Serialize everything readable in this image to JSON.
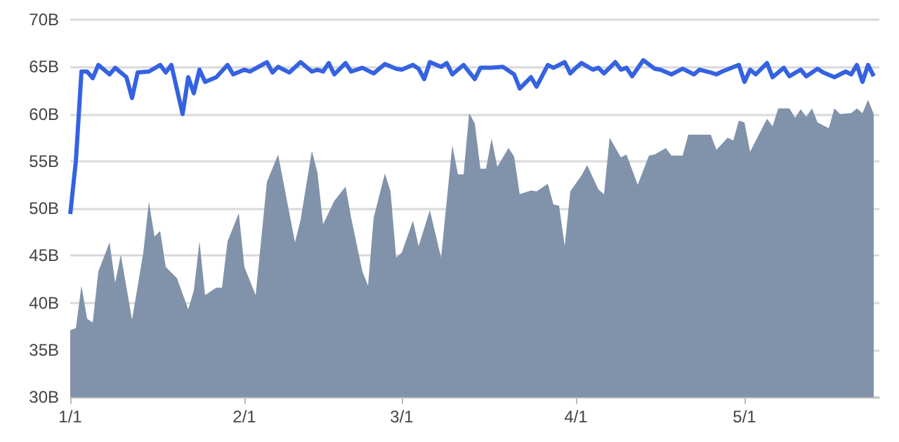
{
  "chart_data": {
    "type": "area",
    "xlim": [
      "--01-01",
      "--05-25"
    ],
    "xticks": [
      {
        "value": "--01-01",
        "label": "1/1"
      },
      {
        "value": "--02-01",
        "label": "2/1"
      },
      {
        "value": "--03-01",
        "label": "3/1"
      },
      {
        "value": "--04-01",
        "label": "4/1"
      },
      {
        "value": "--05-01",
        "label": "5/1"
      }
    ],
    "ylim": [
      30,
      70
    ],
    "yticks": [
      {
        "value": 30,
        "label": "30B"
      },
      {
        "value": 35,
        "label": "35B"
      },
      {
        "value": 40,
        "label": "40B"
      },
      {
        "value": 45,
        "label": "45B"
      },
      {
        "value": 50,
        "label": "50B"
      },
      {
        "value": 55,
        "label": "55B"
      },
      {
        "value": 60,
        "label": "60B"
      },
      {
        "value": 65,
        "label": "65B"
      },
      {
        "value": 70,
        "label": "70B"
      }
    ],
    "grid": "y",
    "series": [
      {
        "color": "#8193aa",
        "x": [
          "--01-01",
          "--01-02",
          "--01-03",
          "--01-04",
          "--01-05",
          "--01-06",
          "--01-08",
          "--01-09",
          "--01-10",
          "--01-12",
          "--01-14",
          "--01-15",
          "--01-16",
          "--01-17",
          "--01-18",
          "--01-20",
          "--01-22",
          "--01-23",
          "--01-24",
          "--01-25",
          "--01-27",
          "--01-28",
          "--01-29",
          "--01-30",
          "--01-31",
          "--02-01",
          "--02-03",
          "--02-05",
          "--02-07",
          "--02-10",
          "--02-11",
          "--02-13",
          "--02-14",
          "--02-15",
          "--02-17",
          "--02-19",
          "--02-20",
          "--02-22",
          "--02-23",
          "--02-24",
          "--02-26",
          "--02-27",
          "--02-28",
          "--03-01",
          "--03-03",
          "--03-04",
          "--03-06",
          "--03-08",
          "--03-10",
          "--03-11",
          "--03-12",
          "--03-13",
          "--03-14",
          "--03-15",
          "--03-16",
          "--03-17",
          "--03-18",
          "--03-20",
          "--03-21",
          "--03-22",
          "--03-24",
          "--03-25",
          "--03-27",
          "--03-28",
          "--03-29",
          "--03-30",
          "--03-31",
          "--04-02",
          "--04-03",
          "--04-05",
          "--04-06",
          "--04-07",
          "--04-09",
          "--04-10",
          "--04-12",
          "--04-14",
          "--04-15",
          "--04-17",
          "--04-18",
          "--04-20",
          "--04-21",
          "--04-25",
          "--04-26",
          "--04-28",
          "--04-29",
          "--04-30",
          "--05-01",
          "--05-02",
          "--05-05",
          "--05-06",
          "--05-07",
          "--05-09",
          "--05-10",
          "--05-11",
          "--05-12",
          "--05-13",
          "--05-14",
          "--05-16",
          "--05-17",
          "--05-18",
          "--05-20",
          "--05-21",
          "--05-22",
          "--05-23",
          "--05-24"
        ],
        "values": [
          37.1,
          37.3,
          41.8,
          38.3,
          37.9,
          43.3,
          46.4,
          42.1,
          45.1,
          38.2,
          45.3,
          50.7,
          47.0,
          47.6,
          43.8,
          42.6,
          39.3,
          41.3,
          46.5,
          40.8,
          41.6,
          41.6,
          46.5,
          48.0,
          49.5,
          43.8,
          40.8,
          52.8,
          55.7,
          46.4,
          48.8,
          56.1,
          53.8,
          48.3,
          50.8,
          52.3,
          49.0,
          43.3,
          41.8,
          49.0,
          53.7,
          51.8,
          44.8,
          45.3,
          48.7,
          46.0,
          49.8,
          44.8,
          56.7,
          53.6,
          53.6,
          60.1,
          59.0,
          54.2,
          54.2,
          57.4,
          54.4,
          56.4,
          55.5,
          51.5,
          51.9,
          51.8,
          52.6,
          50.4,
          50.3,
          46.0,
          51.8,
          53.5,
          54.6,
          52.0,
          51.5,
          57.5,
          55.4,
          55.7,
          52.5,
          55.6,
          55.7,
          56.4,
          55.6,
          55.6,
          57.8,
          57.8,
          56.2,
          57.5,
          57.2,
          59.3,
          59.1,
          56.0,
          59.5,
          58.7,
          60.6,
          60.6,
          59.6,
          60.5,
          59.7,
          60.6,
          59.1,
          58.5,
          60.6,
          60.0,
          60.1,
          60.6,
          60.1,
          61.5,
          60.0
        ]
      },
      {
        "type": "line",
        "color": "#3562e0",
        "x": [
          "--01-01",
          "--01-02",
          "--01-03",
          "--01-04",
          "--01-05",
          "--01-06",
          "--01-08",
          "--01-09",
          "--01-11",
          "--01-12",
          "--01-13",
          "--01-15",
          "--01-17",
          "--01-18",
          "--01-19",
          "--01-21",
          "--01-22",
          "--01-23",
          "--01-24",
          "--01-25",
          "--01-27",
          "--01-29",
          "--01-30",
          "--02-01",
          "--02-02",
          "--02-05",
          "--02-06",
          "--02-07",
          "--02-09",
          "--02-11",
          "--02-13",
          "--02-14",
          "--02-15",
          "--02-16",
          "--02-17",
          "--02-19",
          "--02-20",
          "--02-22",
          "--02-24",
          "--02-26",
          "--02-28",
          "--03-01",
          "--03-03",
          "--03-04",
          "--03-05",
          "--03-06",
          "--03-08",
          "--03-09",
          "--03-10",
          "--03-12",
          "--03-14",
          "--03-15",
          "--03-17",
          "--03-19",
          "--03-21",
          "--03-22",
          "--03-24",
          "--03-25",
          "--03-27",
          "--03-28",
          "--03-30",
          "--03-31",
          "--04-01",
          "--04-02",
          "--04-04",
          "--04-05",
          "--04-06",
          "--04-08",
          "--04-09",
          "--04-10",
          "--04-11",
          "--04-13",
          "--04-15",
          "--04-16",
          "--04-18",
          "--04-20",
          "--04-22",
          "--04-23",
          "--04-25",
          "--04-26",
          "--04-27",
          "--04-30",
          "--05-01",
          "--05-02",
          "--05-03",
          "--05-05",
          "--05-06",
          "--05-08",
          "--05-09",
          "--05-11",
          "--05-12",
          "--05-14",
          "--05-15",
          "--05-17",
          "--05-19",
          "--05-20",
          "--05-21",
          "--05-22",
          "--05-23",
          "--05-24"
        ],
        "values": [
          49.4,
          55.0,
          64.5,
          64.5,
          63.8,
          65.2,
          64.2,
          64.9,
          63.9,
          61.7,
          64.4,
          64.5,
          65.2,
          64.4,
          65.2,
          60.0,
          63.9,
          62.2,
          64.7,
          63.4,
          63.9,
          65.2,
          64.2,
          64.7,
          64.5,
          65.5,
          64.4,
          65.0,
          64.4,
          65.5,
          64.5,
          64.7,
          64.5,
          65.4,
          64.2,
          65.4,
          64.5,
          64.9,
          64.3,
          65.3,
          64.8,
          64.7,
          65.2,
          64.8,
          63.7,
          65.5,
          65.0,
          65.4,
          64.2,
          65.2,
          63.7,
          64.9,
          64.9,
          65.0,
          64.2,
          62.7,
          63.9,
          62.9,
          65.2,
          64.9,
          65.5,
          64.3,
          64.9,
          65.4,
          64.7,
          64.9,
          64.3,
          65.5,
          64.7,
          64.9,
          64.0,
          65.7,
          64.8,
          64.7,
          64.2,
          64.8,
          64.2,
          64.7,
          64.4,
          64.2,
          64.5,
          65.2,
          63.4,
          64.7,
          64.2,
          65.4,
          63.9,
          64.9,
          64.0,
          64.7,
          64.0,
          64.8,
          64.4,
          63.9,
          64.5,
          64.2,
          65.2,
          63.4,
          65.2,
          64.0
        ]
      }
    ]
  }
}
